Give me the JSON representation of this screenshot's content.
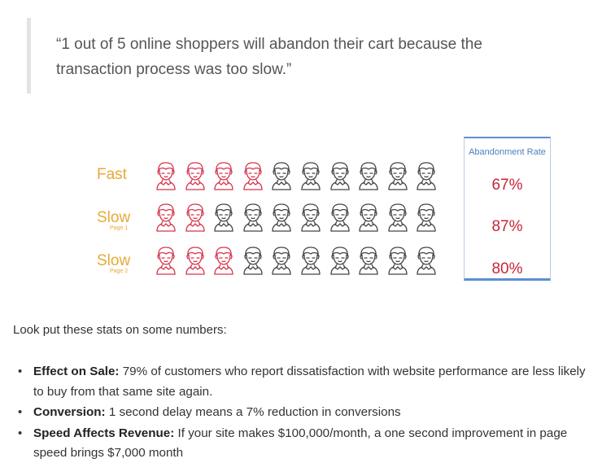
{
  "quote": {
    "text": "“1 out of 5 online shoppers will abandon their cart because the transaction process was too slow.”"
  },
  "infographic": {
    "rate_header": "Abandonment Rate",
    "colors": {
      "abandon": "#d6344c",
      "stay": "#444444",
      "label": "#e9a836",
      "box": "#5b8fd0"
    },
    "icon": "shopper-face-icon",
    "rows": [
      {
        "label": "Fast",
        "sublabel": "",
        "rate": "67%",
        "abandoned": [
          0,
          1,
          2,
          3
        ]
      },
      {
        "label": "Slow",
        "sublabel": "Page 1",
        "rate": "87%",
        "abandoned": [
          0,
          1
        ]
      },
      {
        "label": "Slow",
        "sublabel": "Page 2",
        "rate": "80%",
        "abandoned": [
          0,
          1,
          2
        ]
      }
    ]
  },
  "content": {
    "intro": "Look put these stats on some numbers:",
    "bullets": [
      {
        "title": "Effect on Sale:",
        "text": " 79% of customers who report dissatisfaction with website performance are less likely to buy from that same site again."
      },
      {
        "title": "Conversion:",
        "text": " 1 second delay means a 7% reduction in conversions"
      },
      {
        "title": "Speed Affects Revenue:",
        "text": " If your site makes $100,000/month, a one second improvement in page speed brings $7,000 month"
      }
    ]
  }
}
